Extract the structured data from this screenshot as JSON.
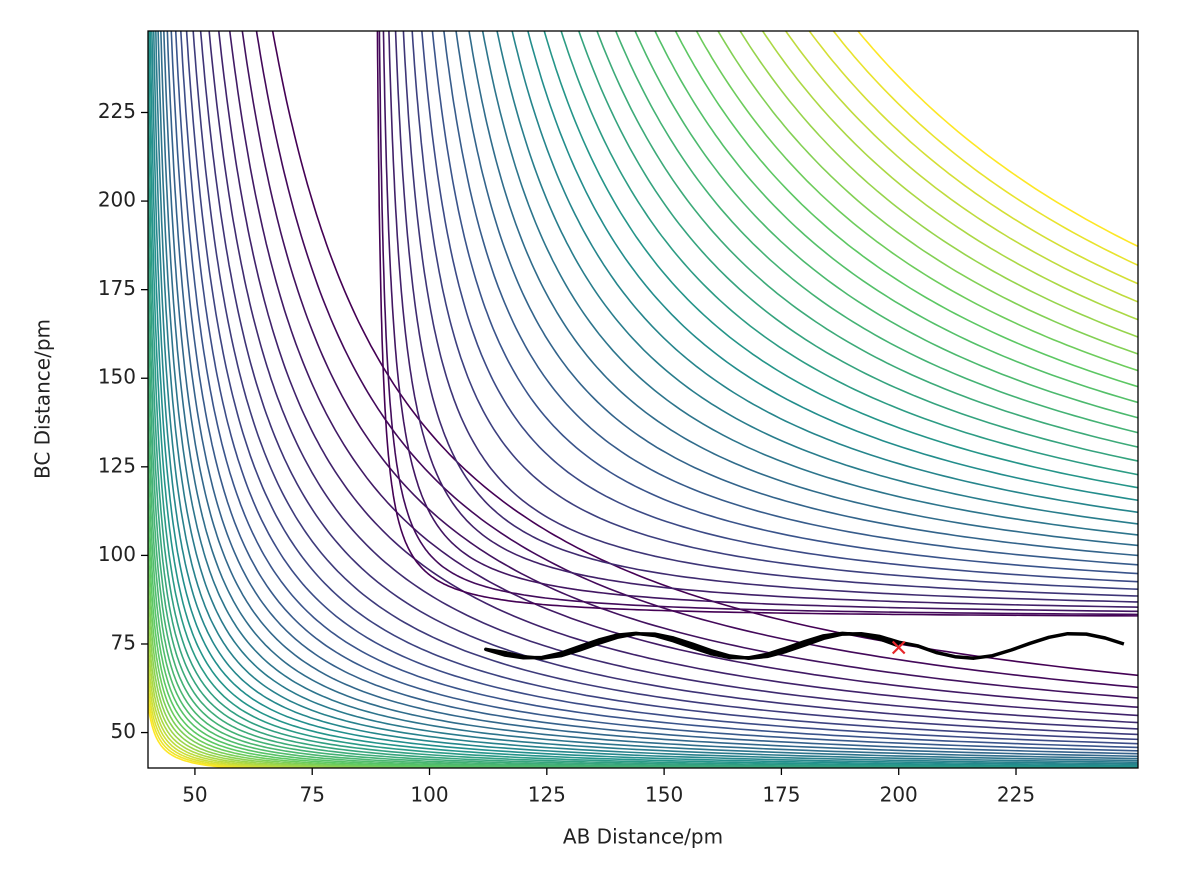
{
  "chart_data": {
    "type": "contour",
    "x_label": "AB Distance/pm",
    "y_label": "BC Distance/pm",
    "xlim": [
      40,
      251
    ],
    "ylim": [
      40,
      248
    ],
    "xticks": [
      50,
      75,
      100,
      125,
      150,
      175,
      200,
      225
    ],
    "yticks": [
      50,
      75,
      100,
      125,
      150,
      175,
      200,
      225
    ],
    "series": [
      {
        "color": "#000000",
        "x": [
          200,
          196,
          192,
          188,
          184,
          180,
          176,
          172,
          168,
          164,
          160,
          156,
          152,
          148,
          144,
          140,
          136,
          132,
          128,
          124,
          120,
          116,
          112,
          116,
          120,
          124,
          128,
          132,
          136,
          140,
          144,
          148,
          152,
          156,
          160,
          164,
          168,
          172,
          176,
          180,
          184,
          188,
          192,
          196,
          200,
          204,
          208,
          212,
          216,
          220,
          224,
          228,
          232,
          236,
          240,
          244,
          248
        ],
        "y": [
          74.5,
          76.4,
          77.6,
          78.0,
          77.3,
          75.7,
          73.8,
          72.1,
          71.1,
          71.2,
          72.3,
          74.0,
          75.9,
          77.4,
          78.0,
          77.5,
          76.1,
          74.3,
          72.4,
          71.2,
          71.1,
          71.9,
          73.5,
          72.6,
          71.4,
          71.0,
          71.7,
          73.3,
          75.2,
          76.9,
          77.9,
          77.8,
          76.7,
          75.0,
          73.1,
          71.6,
          71.0,
          71.5,
          72.9,
          74.7,
          76.6,
          77.8,
          77.9,
          77.1,
          75.5,
          74.5,
          72.6,
          71.4,
          71.0,
          71.7,
          73.3,
          75.2,
          76.9,
          77.9,
          77.8,
          76.7,
          75.0
        ]
      }
    ],
    "start": {
      "color": "#e8262a",
      "x": 200,
      "y": 74
    }
  }
}
